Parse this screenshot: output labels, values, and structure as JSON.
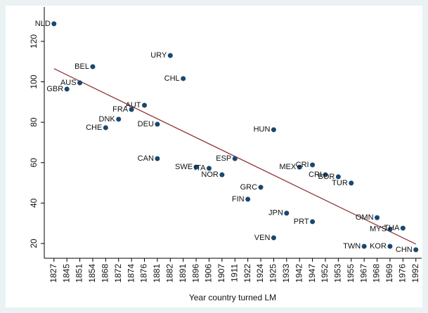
{
  "chart_data": {
    "type": "scatter",
    "x_label": "Year country turned LM",
    "point_labels": [
      "NLD",
      "GBR",
      "AUS",
      "BEL",
      "CHE",
      "DNK",
      "FRA",
      "AUT",
      "DEU",
      "CAN",
      "URY",
      "CHL",
      "SWE",
      "ITA",
      "NOR",
      "ESP",
      "FIN",
      "GRC",
      "HUN",
      "VEN",
      "JPN",
      "MEX",
      "CRI",
      "PRT",
      "CRI",
      "BOR",
      "TUR",
      "TWN",
      "OMN",
      "MYS",
      "KOR",
      "THA",
      "CHN"
    ],
    "x": [
      1,
      2,
      3,
      4,
      5,
      6,
      7,
      8,
      9,
      9,
      10,
      11,
      12,
      13,
      14,
      15,
      16,
      17,
      18,
      18,
      19,
      20,
      21,
      21,
      22,
      23,
      24,
      25,
      26,
      27,
      27,
      28,
      29
    ],
    "values": [
      128.7,
      96.4,
      99.5,
      107.5,
      77.3,
      81.5,
      86.3,
      88.4,
      79,
      62,
      113,
      101.6,
      57.8,
      57.2,
      54,
      62,
      41.9,
      47.8,
      76.3,
      22.8,
      35,
      57.8,
      58.9,
      30.8,
      54,
      53,
      49.9,
      18.6,
      32.8,
      27,
      18.6,
      27.6,
      16.9
    ],
    "color": "#1a476f",
    "fit": {
      "x": [
        1,
        29
      ],
      "values": [
        106.5,
        19.7
      ],
      "color": "#90353b"
    },
    "xlim": [
      0.25,
      29.45
    ],
    "ylim": [
      12.7,
      137
    ],
    "xticks": [
      {
        "value": 1,
        "label": "1827"
      },
      {
        "value": 2,
        "label": "1845"
      },
      {
        "value": 3,
        "label": "1851"
      },
      {
        "value": 4,
        "label": "1854"
      },
      {
        "value": 5,
        "label": "1868"
      },
      {
        "value": 6,
        "label": "1872"
      },
      {
        "value": 7,
        "label": "1874"
      },
      {
        "value": 8,
        "label": "1876"
      },
      {
        "value": 9,
        "label": "1881"
      },
      {
        "value": 10,
        "label": "1882"
      },
      {
        "value": 11,
        "label": "1891"
      },
      {
        "value": 12,
        "label": "1896"
      },
      {
        "value": 13,
        "label": "1906"
      },
      {
        "value": 14,
        "label": "1907"
      },
      {
        "value": 15,
        "label": "1911"
      },
      {
        "value": 16,
        "label": "1922"
      },
      {
        "value": 17,
        "label": "1924"
      },
      {
        "value": 18,
        "label": "1925"
      },
      {
        "value": 19,
        "label": "1933"
      },
      {
        "value": 20,
        "label": "1942"
      },
      {
        "value": 21,
        "label": "1947"
      },
      {
        "value": 22,
        "label": "1952"
      },
      {
        "value": 23,
        "label": "1953"
      },
      {
        "value": 24,
        "label": "1955"
      },
      {
        "value": 25,
        "label": "1967"
      },
      {
        "value": 26,
        "label": "1968"
      },
      {
        "value": 27,
        "label": "1969"
      },
      {
        "value": 28,
        "label": "1976"
      },
      {
        "value": 29,
        "label": "1992"
      }
    ],
    "yticks": [
      20,
      40,
      60,
      80,
      100,
      120
    ]
  }
}
